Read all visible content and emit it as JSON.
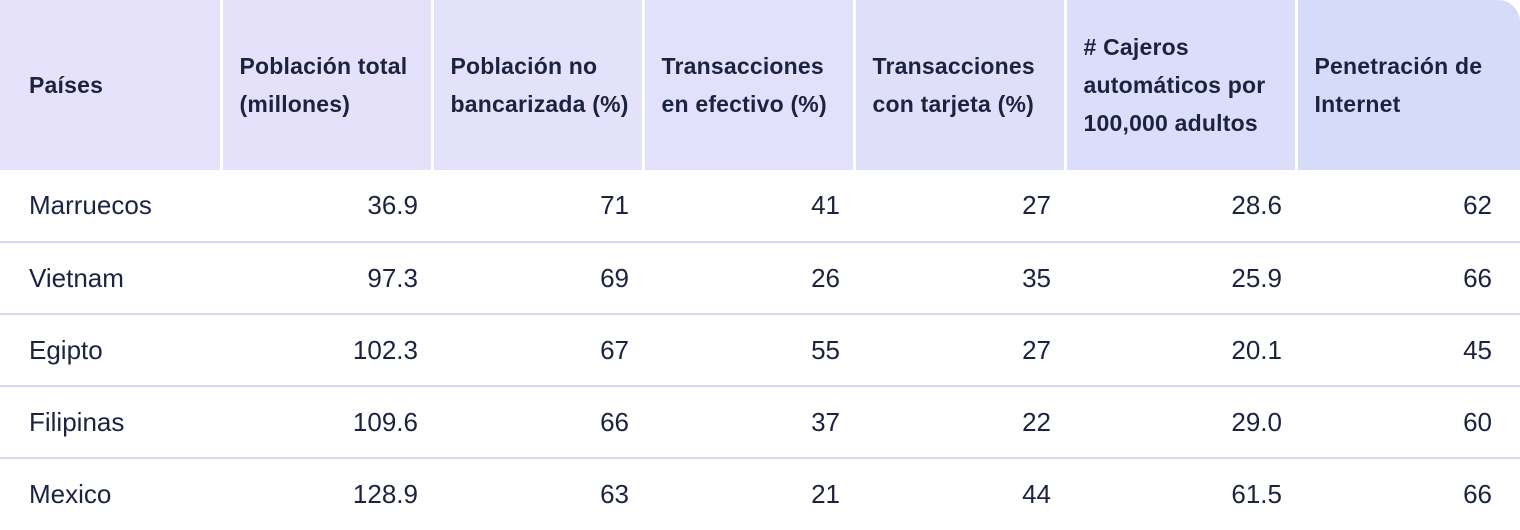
{
  "table": {
    "headers": [
      "Países",
      "Población total (millones)",
      "Población no bancarizada (%)",
      "Transacciones en efectivo (%)",
      "Transacciones con tarjeta (%)",
      "# Cajeros automáticos por 100,000 adultos",
      "Penetración de Internet"
    ],
    "rows": [
      [
        "Marruecos",
        "36.9",
        "71",
        "41",
        "27",
        "28.6",
        "62"
      ],
      [
        "Vietnam",
        "97.3",
        "69",
        "26",
        "35",
        "25.9",
        "66"
      ],
      [
        "Egipto",
        "102.3",
        "67",
        "55",
        "27",
        "20.1",
        "45"
      ],
      [
        "Filipinas",
        "109.6",
        "66",
        "37",
        "22",
        "29.0",
        "60"
      ],
      [
        "Mexico",
        "128.9",
        "63",
        "21",
        "44",
        "61.5",
        "66"
      ]
    ]
  },
  "colors": {
    "header_bg_start": "#e7e2fb",
    "header_bg_end": "#d6dbfa",
    "row_divider": "#d3d9f0",
    "text": "#1c2340"
  }
}
